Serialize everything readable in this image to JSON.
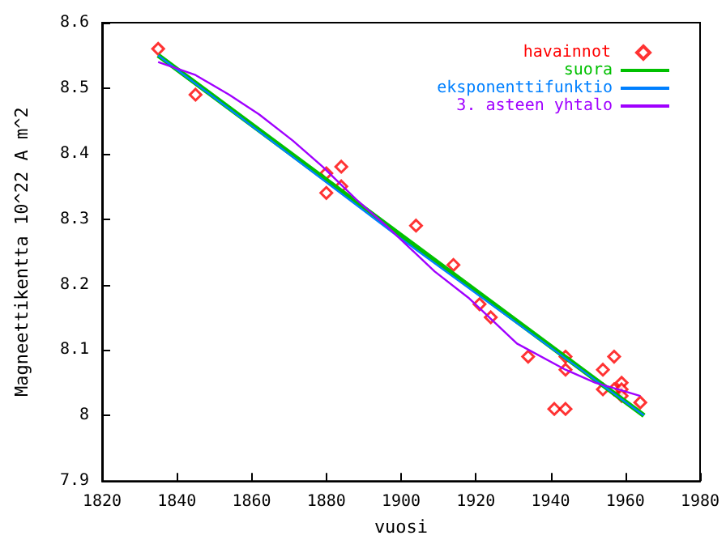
{
  "chart_data": {
    "type": "scatter",
    "xlabel": "vuosi",
    "ylabel": "Magneettikentta 10^22 A m^2",
    "xlim": [
      1820,
      1980
    ],
    "xticks": [
      1820,
      1840,
      1860,
      1880,
      1900,
      1920,
      1940,
      1960,
      1980
    ],
    "ylim": [
      7.9,
      8.6
    ],
    "yticks": [
      7.9,
      8,
      8.1,
      8.2,
      8.3,
      8.4,
      8.5,
      8.6
    ],
    "grid": false,
    "legend": "top right",
    "series": [
      {
        "name": "havainnot",
        "marker": "diamond",
        "color": "#ff0000",
        "x": [
          1835,
          1845,
          1880,
          1880,
          1884,
          1884,
          1904,
          1914,
          1921,
          1924,
          1934,
          1944,
          1944,
          1941,
          1944,
          1954,
          1954,
          1957,
          1959,
          1957,
          1959,
          1959,
          1964
        ],
        "values": [
          8.56,
          8.49,
          8.37,
          8.34,
          8.38,
          8.35,
          8.29,
          8.23,
          8.17,
          8.15,
          8.09,
          8.09,
          8.07,
          8.01,
          8.01,
          8.07,
          8.04,
          8.09,
          8.05,
          8.04,
          8.04,
          8.03,
          8.02
        ]
      },
      {
        "name": "suora",
        "type": "line",
        "marker": "none",
        "line_style": "solid",
        "color": "#00c000",
        "x": [
          1835,
          1965
        ],
        "values": [
          8.55,
          8.0
        ]
      },
      {
        "name": "eksponenttifunktio",
        "type": "line",
        "marker": "none",
        "line_style": "solid",
        "color": "#0080ff",
        "x": [
          1835,
          1900,
          1965
        ],
        "values": [
          8.55,
          8.27,
          8.0
        ]
      },
      {
        "name": "3. asteen yhtalo",
        "type": "line",
        "marker": "none",
        "line_style": "solid",
        "color": "#a000ff",
        "x": [
          1835,
          1845,
          1854,
          1862,
          1871,
          1879,
          1888,
          1896,
          1909,
          1918,
          1931,
          1944,
          1952,
          1958,
          1964
        ],
        "values": [
          8.54,
          8.52,
          8.49,
          8.46,
          8.42,
          8.38,
          8.33,
          8.29,
          8.22,
          8.18,
          8.11,
          8.07,
          8.05,
          8.04,
          8.03
        ]
      }
    ]
  }
}
